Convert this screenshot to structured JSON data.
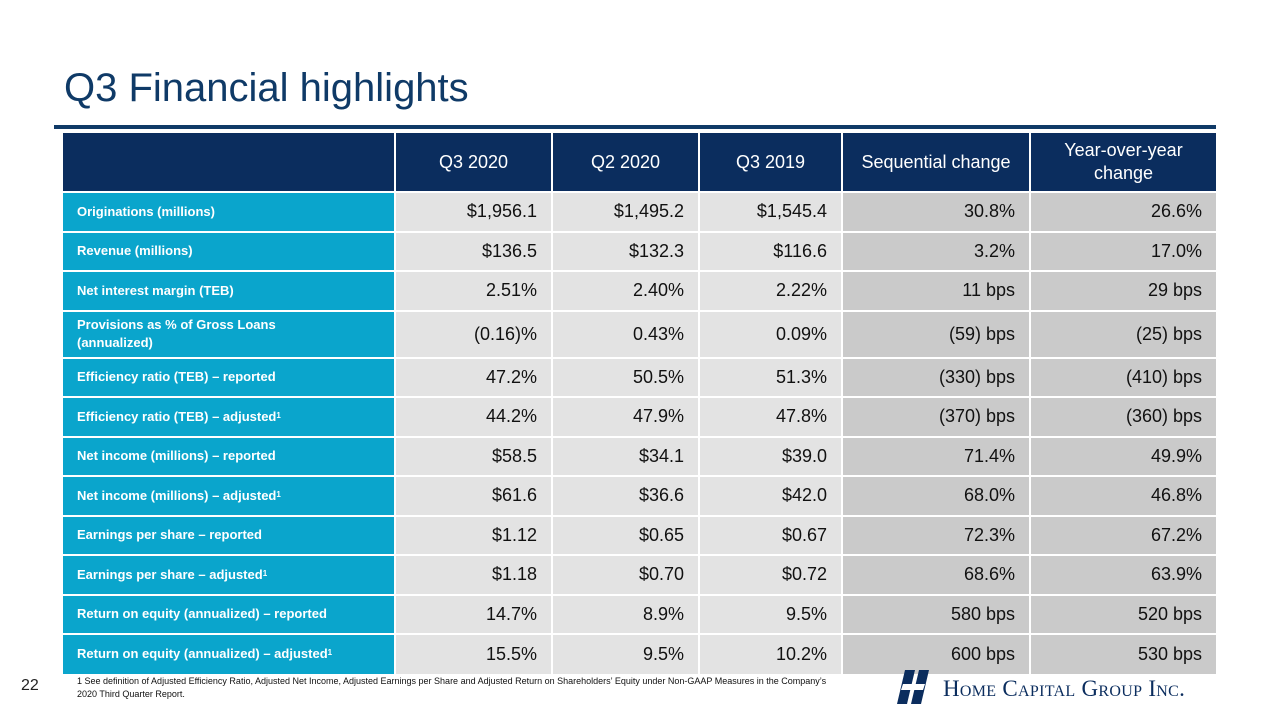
{
  "title": "Q3 Financial highlights",
  "columns": [
    "Q3 2020",
    "Q2 2020",
    "Q3 2019",
    "Sequential change",
    "Year-over-year change"
  ],
  "rows": [
    {
      "label": "Originations (millions)",
      "values": [
        "$1,956.1",
        "$1,495.2",
        "$1,545.4",
        "30.8%",
        "26.6%"
      ]
    },
    {
      "label": "Revenue (millions)",
      "values": [
        "$136.5",
        "$132.3",
        "$116.6",
        "3.2%",
        "17.0%"
      ]
    },
    {
      "label": "Net interest margin (TEB)",
      "values": [
        "2.51%",
        "2.40%",
        "2.22%",
        "11 bps",
        "29 bps"
      ]
    },
    {
      "label": "Provisions as % of Gross Loans (annualized)",
      "values": [
        "(0.16)%",
        "0.43%",
        "0.09%",
        "(59) bps",
        "(25) bps"
      ]
    },
    {
      "label": "Efficiency ratio (TEB) – reported",
      "values": [
        "47.2%",
        "50.5%",
        "51.3%",
        "(330) bps",
        "(410) bps"
      ]
    },
    {
      "label": "Efficiency ratio (TEB) – adjusted",
      "footnote": "1",
      "values": [
        "44.2%",
        "47.9%",
        "47.8%",
        "(370) bps",
        "(360) bps"
      ]
    },
    {
      "label": "Net income (millions) – reported",
      "values": [
        "$58.5",
        "$34.1",
        "$39.0",
        "71.4%",
        "49.9%"
      ]
    },
    {
      "label": "Net income (millions) – adjusted",
      "footnote": "1",
      "values": [
        "$61.6",
        "$36.6",
        "$42.0",
        "68.0%",
        "46.8%"
      ]
    },
    {
      "label": "Earnings per share – reported",
      "values": [
        "$1.12",
        "$0.65",
        "$0.67",
        "72.3%",
        "67.2%"
      ]
    },
    {
      "label": "Earnings per share – adjusted",
      "footnote": "1",
      "values": [
        "$1.18",
        "$0.70",
        "$0.72",
        "68.6%",
        "63.9%"
      ]
    },
    {
      "label": "Return on equity (annualized) – reported",
      "values": [
        "14.7%",
        "8.9%",
        "9.5%",
        "580 bps",
        "520 bps"
      ]
    },
    {
      "label": "Return on equity (annualized) – adjusted",
      "footnote": "1",
      "values": [
        "15.5%",
        "9.5%",
        "10.2%",
        "600 bps",
        "530 bps"
      ]
    }
  ],
  "footnote": "1 See definition of Adjusted Efficiency Ratio, Adjusted Net Income, Adjusted Earnings per Share and Adjusted Return on Shareholders’ Equity under Non-GAAP Measures in the Company’s 2020 Third Quarter Report.",
  "page_number": "22",
  "logo_text": "Home Capital Group Inc.",
  "colors": {
    "navy": "#0b2d5e",
    "title_blue": "#0f3a67",
    "label_cyan": "#0aa5cc",
    "cell_light": "#e3e3e3",
    "cell_dark": "#cacaca"
  }
}
